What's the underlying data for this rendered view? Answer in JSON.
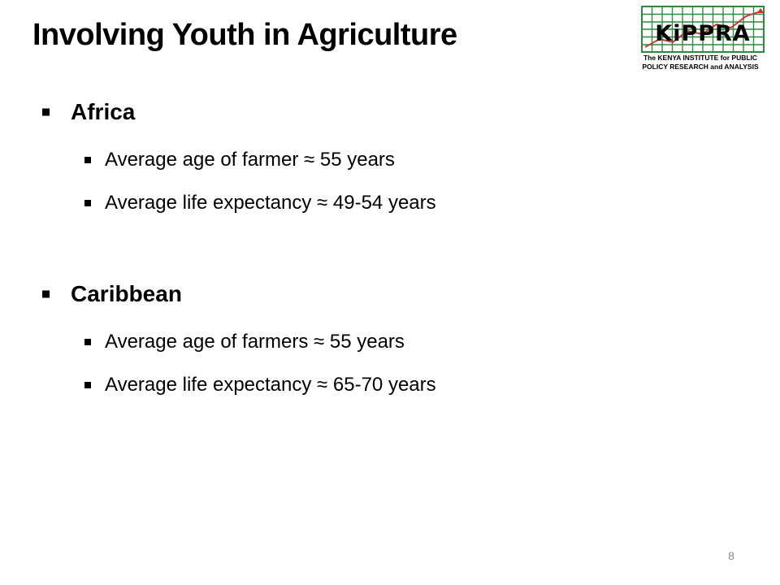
{
  "slide": {
    "title": "Involving Youth in Agriculture",
    "page_number": "8"
  },
  "logo": {
    "name": "KIPPRA",
    "caption_line1": "The KENYA INSTITUTE for PUBLIC",
    "caption_line2": "POLICY RESEARCH and ANALYSIS",
    "colors": {
      "grid": "#2e8b3a",
      "trend": "#d12a2a",
      "lettering": "#000000"
    }
  },
  "sections": [
    {
      "heading": "Africa",
      "items": [
        "Average age of farmer ≈  55 years",
        "Average life expectancy ≈  49-54 years"
      ]
    },
    {
      "heading": "Caribbean",
      "items": [
        "Average age of farmers ≈ 55 years",
        "Average life expectancy ≈ 65-70 years"
      ]
    }
  ]
}
